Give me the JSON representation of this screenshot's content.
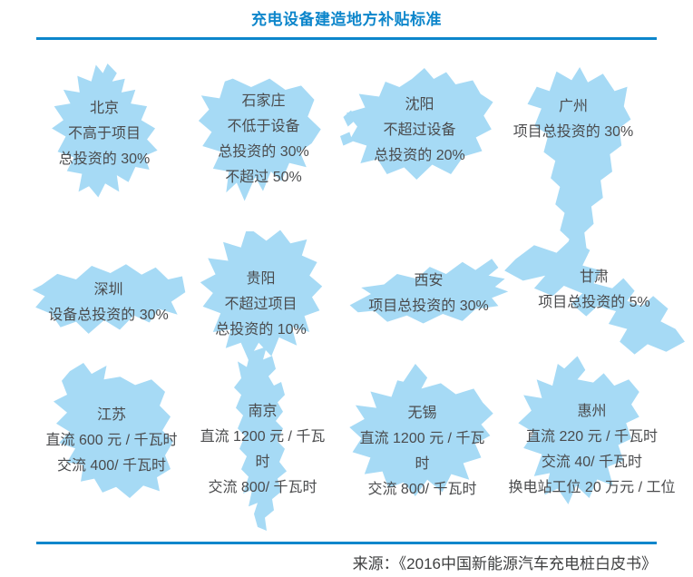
{
  "title": "充电设备建造地方补贴标准",
  "source": "来源：《2016中国新能源汽车充电桩白皮书》",
  "colors": {
    "accent": "#0d86cb",
    "map_fill": "#a6daf5",
    "map_text": "#4a4b4d"
  },
  "regions": [
    {
      "id": "beijing",
      "name": "北京",
      "lines": [
        "北京",
        "不高于项目",
        "总投资的 30%"
      ]
    },
    {
      "id": "shijiazhuang",
      "name": "石家庄",
      "lines": [
        "石家庄",
        "不低于设备",
        "总投资的 30%",
        "不超过 50%"
      ]
    },
    {
      "id": "shenyang",
      "name": "沈阳",
      "lines": [
        "沈阳",
        "不超过设备",
        "总投资的 20%"
      ]
    },
    {
      "id": "guangzhou",
      "name": "广州",
      "lines": [
        "广州",
        "项目总投资的 30%"
      ]
    },
    {
      "id": "shenzhen",
      "name": "深圳",
      "lines": [
        "深圳",
        "设备总投资的 30%"
      ]
    },
    {
      "id": "guiyang",
      "name": "贵阳",
      "lines": [
        "贵阳",
        "不超过项目",
        "总投资的 10%"
      ]
    },
    {
      "id": "xian",
      "name": "西安",
      "lines": [
        "西安",
        "项目总投资的 30%"
      ]
    },
    {
      "id": "gansu",
      "name": "甘肃",
      "lines": [
        "甘肃",
        "项目总投资的 5%"
      ]
    },
    {
      "id": "jiangsu",
      "name": "江苏",
      "lines": [
        "江苏",
        "直流 600 元 / 千瓦时",
        "交流 400/ 千瓦时"
      ]
    },
    {
      "id": "nanjing",
      "name": "南京",
      "lines": [
        "南京",
        "直流 1200 元 / 千瓦",
        "时",
        "交流 800/ 千瓦时"
      ]
    },
    {
      "id": "wuxi",
      "name": "无锡",
      "lines": [
        "无锡",
        "直流 1200 元 / 千瓦",
        "时",
        "交流 800/ 千瓦时"
      ]
    },
    {
      "id": "huizhou",
      "name": "惠州",
      "lines": [
        "惠州",
        "直流 220 元 / 千瓦时",
        "交流 40/ 千瓦时",
        "换电站工位 20 万元 / 工位"
      ]
    }
  ]
}
